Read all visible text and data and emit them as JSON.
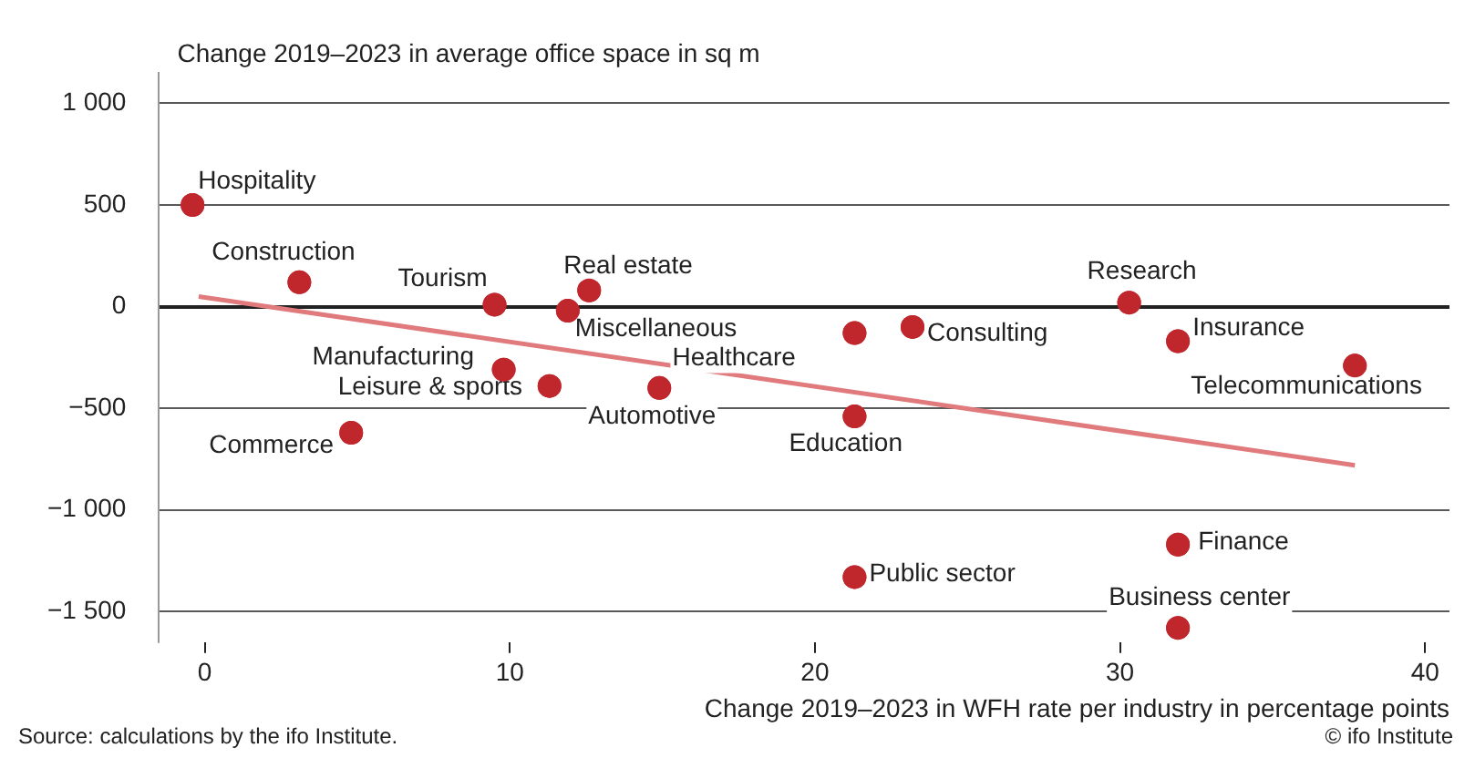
{
  "chart_data": {
    "type": "scatter",
    "ylabel": "Change 2019–2023 in average office space in sq m",
    "xlabel": "Change 2019–2023 in WFH rate per industry in percentage points",
    "xlim": [
      -1.5,
      40.8
    ],
    "xticks": [
      0,
      10,
      20,
      30,
      40
    ],
    "ylim": [
      -1650,
      1150
    ],
    "yticks": [
      {
        "value": -1500,
        "label": "−1 500"
      },
      {
        "value": -1000,
        "label": "−1 000"
      },
      {
        "value": -500,
        "label": "−500"
      },
      0,
      500,
      {
        "value": 1000,
        "label": "1 000"
      }
    ],
    "grid": "y",
    "legend": false,
    "marker": "circle",
    "series": [
      {
        "color": "#c0272d",
        "x": [
          -0.4,
          3.1,
          9.5,
          12.6,
          11.9,
          9.8,
          11.3,
          14.9,
          4.8,
          21.3,
          23.2,
          21.3,
          21.3,
          30.3,
          31.9,
          37.7,
          31.9,
          31.9
        ],
        "values": [
          500,
          120,
          10,
          80,
          -20,
          -310,
          -390,
          -400,
          -620,
          -130,
          -100,
          -540,
          -1330,
          20,
          -170,
          -290,
          -1170,
          -1580
        ]
      },
      {
        "type": "line",
        "marker": "none",
        "color": "#e07a7c",
        "x": [
          -0.2,
          37.7
        ],
        "values": [
          50,
          -780
        ]
      }
    ],
    "annotations": [
      {
        "text": "Hospitality",
        "x": -0.4,
        "y": 500
      },
      {
        "text": "Construction",
        "x": 3.1,
        "y": 115
      },
      {
        "text": "Tourism",
        "x": 9.5,
        "y": 10
      },
      {
        "text": "Real estate",
        "x": 12.6,
        "y": 80
      },
      {
        "text": "Miscellaneous",
        "x": 11.9,
        "y": -20
      },
      {
        "text": "Manufacturing",
        "x": 9.8,
        "y": -310
      },
      {
        "text": "Leisure & sports",
        "x": 11.3,
        "y": -390
      },
      {
        "text": "Automotive",
        "x": 14.9,
        "y": -405
      },
      {
        "text": "Commerce",
        "x": 4.8,
        "y": -620
      },
      {
        "text": "Healthcare",
        "x": 21.3,
        "y": -130
      },
      {
        "text": "Consulting",
        "x": 23.2,
        "y": -105
      },
      {
        "text": "Education",
        "x": 21.3,
        "y": -540
      },
      {
        "text": "Public sector",
        "x": 21.3,
        "y": -1325
      },
      {
        "text": "Research",
        "x": 30.3,
        "y": 20
      },
      {
        "text": "Insurance",
        "x": 31.9,
        "y": -170
      },
      {
        "text": "Telecommunications",
        "x": 37.7,
        "y": -285
      },
      {
        "text": "Finance",
        "x": 31.9,
        "y": -1170
      },
      {
        "text": "Business center",
        "x": 31.9,
        "y": -1575
      },
      "Source: calculations by the ifo Institute.",
      "© ifo Institute"
    ]
  }
}
